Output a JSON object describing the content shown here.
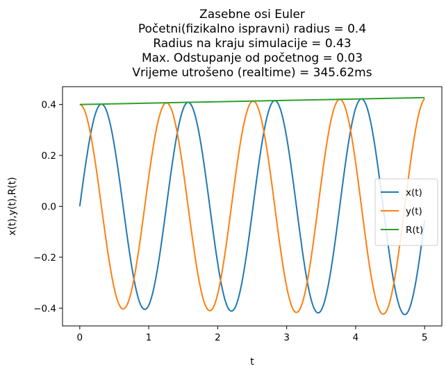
{
  "chart_data": {
    "type": "line",
    "title_lines": [
      "Zasebne osi Euler",
      "Početni(fizikalno ispravni) radius = 0.4",
      "Radius na kraju simulacije = 0.43",
      "Max. Odstupanje od početnog = 0.03",
      "Vrijeme utrošeno (realtime) = 345.62ms"
    ],
    "xlabel": "t",
    "ylabel": "x(t),y(t),R(t)",
    "xlim": [
      -0.25,
      5.25
    ],
    "ylim": [
      -0.47,
      0.47
    ],
    "xticks": [
      0,
      1,
      2,
      3,
      4,
      5
    ],
    "xtick_labels": [
      "0",
      "1",
      "2",
      "3",
      "4",
      "5"
    ],
    "yticks": [
      0.4,
      0.2,
      0.0,
      -0.2,
      -0.4
    ],
    "ytick_labels": [
      "0.4",
      "0.2",
      "0.0",
      "−0.2",
      "−0.4"
    ],
    "grid": false,
    "legend_position": "center-right",
    "series": [
      {
        "name": "x(t)",
        "color": "#1f77b4",
        "model": {
          "kind": "radius_sin",
          "omega": 5.0,
          "r0": 0.4,
          "r1": 0.427,
          "t0": 0,
          "t1": 5,
          "samples": 600
        }
      },
      {
        "name": "y(t)",
        "color": "#ff7f0e",
        "model": {
          "kind": "radius_cos",
          "omega": 5.0,
          "r0": 0.4,
          "r1": 0.427,
          "t0": 0,
          "t1": 5,
          "samples": 600
        }
      },
      {
        "name": "R(t)",
        "color": "#2ca02c",
        "x": [
          0,
          5
        ],
        "values": [
          0.4,
          0.427
        ]
      }
    ]
  }
}
